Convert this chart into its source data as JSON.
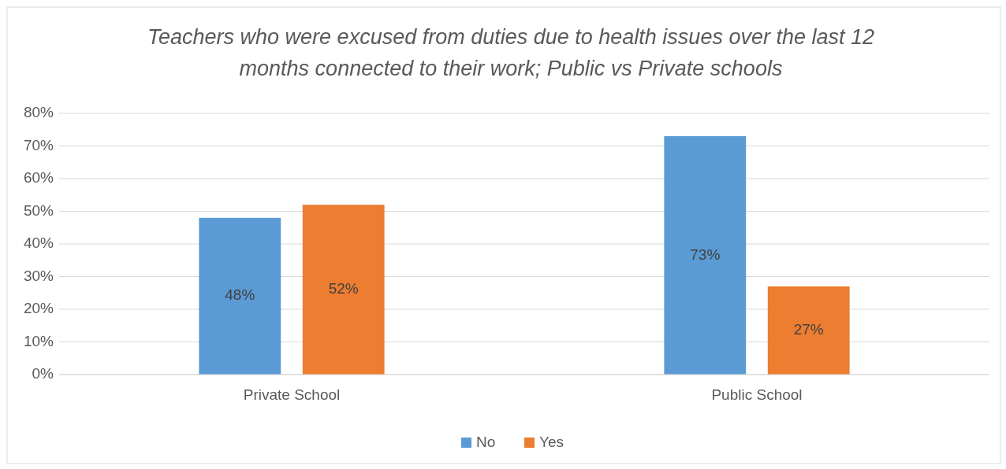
{
  "chart_data": {
    "type": "bar",
    "title": "Teachers who were excused from duties due to health issues over the last 12 months connected to their work; Public vs Private schools",
    "categories": [
      "Private School",
      "Public School"
    ],
    "series": [
      {
        "name": "No",
        "color": "#5b9bd5",
        "values": [
          48,
          73
        ],
        "value_labels": [
          "48%",
          "73%"
        ]
      },
      {
        "name": "Yes",
        "color": "#ed7d31",
        "values": [
          52,
          27
        ],
        "value_labels": [
          "52%",
          "27%"
        ]
      }
    ],
    "ylim": [
      0,
      80
    ],
    "yticks": [
      {
        "value": 0,
        "label": "0%"
      },
      {
        "value": 10,
        "label": "10%"
      },
      {
        "value": 20,
        "label": "20%"
      },
      {
        "value": 30,
        "label": "30%"
      },
      {
        "value": 40,
        "label": "40%"
      },
      {
        "value": 50,
        "label": "50%"
      },
      {
        "value": 60,
        "label": "60%"
      },
      {
        "value": 70,
        "label": "70%"
      },
      {
        "value": 80,
        "label": "80%"
      }
    ],
    "grid": "y",
    "legend": "bottom"
  }
}
